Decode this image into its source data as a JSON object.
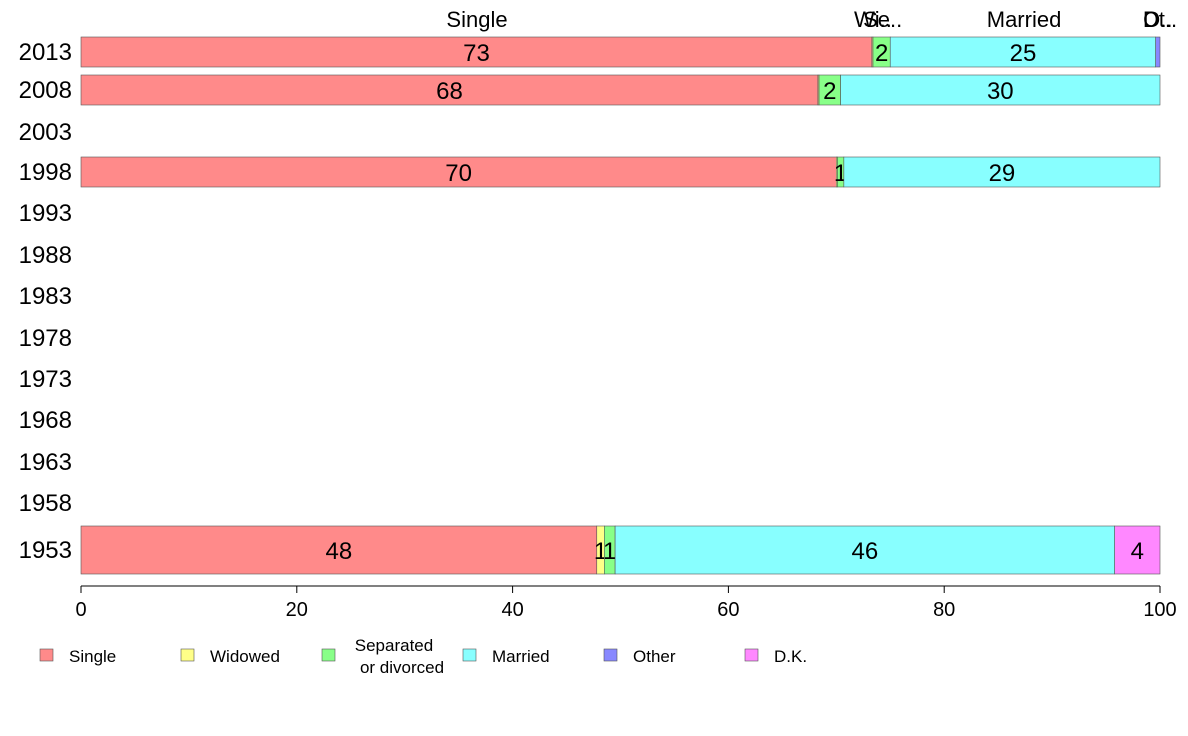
{
  "chart_data": {
    "type": "bar",
    "orientation": "horizontal",
    "stacked": true,
    "xlim": [
      0,
      100
    ],
    "x_ticks": [
      "0",
      "20",
      "40",
      "60",
      "80",
      "100"
    ],
    "categories": [
      "2013",
      "2008",
      "2003",
      "1998",
      "1993",
      "1988",
      "1983",
      "1978",
      "1973",
      "1968",
      "1963",
      "1958",
      "1953"
    ],
    "series": [
      {
        "name": "Single",
        "color": "#ff8a8a",
        "values": [
          73.3,
          68.3,
          null,
          70.0,
          null,
          null,
          null,
          null,
          null,
          null,
          null,
          null,
          47.8
        ],
        "labels": [
          "73",
          "68",
          "",
          "70",
          "",
          "",
          "",
          "",
          "",
          "",
          "",
          "",
          "48"
        ]
      },
      {
        "name": "Widowed",
        "color": "#ffff88",
        "values": [
          0.1,
          0.1,
          null,
          0.1,
          null,
          null,
          null,
          null,
          null,
          null,
          null,
          null,
          0.7
        ],
        "labels": [
          "",
          "",
          "",
          "",
          "",
          "",
          "",
          "",
          "",
          "",
          "",
          "",
          "1"
        ]
      },
      {
        "name": "Separated or divorced",
        "color": "#88ff88",
        "values": [
          1.6,
          2.0,
          null,
          0.6,
          null,
          null,
          null,
          null,
          null,
          null,
          null,
          null,
          1.0
        ],
        "labels": [
          "2",
          "2",
          "",
          "1",
          "",
          "",
          "",
          "",
          "",
          "",
          "",
          "",
          "1"
        ]
      },
      {
        "name": "Married",
        "color": "#88ffff",
        "values": [
          24.6,
          29.6,
          null,
          29.3,
          null,
          null,
          null,
          null,
          null,
          null,
          null,
          null,
          46.3
        ],
        "labels": [
          "25",
          "30",
          "",
          "29",
          "",
          "",
          "",
          "",
          "",
          "",
          "",
          "",
          "46"
        ]
      },
      {
        "name": "Other",
        "color": "#8888ff",
        "values": [
          0.4,
          0,
          null,
          0,
          null,
          null,
          null,
          null,
          null,
          null,
          null,
          null,
          0
        ],
        "labels": [
          "",
          "",
          "",
          "",
          "",
          "",
          "",
          "",
          "",
          "",
          "",
          "",
          ""
        ]
      },
      {
        "name": "D.K.",
        "color": "#ff88ff",
        "values": [
          0,
          0,
          null,
          0,
          null,
          null,
          null,
          null,
          null,
          null,
          null,
          null,
          4.2
        ],
        "labels": [
          "",
          "",
          "",
          "",
          "",
          "",
          "",
          "",
          "",
          "",
          "",
          "",
          "4"
        ]
      }
    ],
    "top_labels": [
      {
        "text": "Single",
        "x": 36.7
      },
      {
        "text": "Wi..",
        "x": 73.4
      },
      {
        "text": "Se..",
        "x": 74.3
      },
      {
        "text": "Married",
        "x": 87.4
      },
      {
        "text": "O..",
        "x": 99.8
      },
      {
        "text": "Dt..",
        "x": 100.0
      }
    ],
    "legend": {
      "placement": "bottom",
      "entries": [
        {
          "label": "Single",
          "color": "#ff8a8a"
        },
        {
          "label": "Widowed",
          "color": "#ffff88"
        },
        {
          "label_line1": "Separated",
          "label_line2": "or divorced",
          "color": "#88ff88"
        },
        {
          "label": "Married",
          "color": "#88ffff"
        },
        {
          "label": "Other",
          "color": "#8888ff"
        },
        {
          "label": "D.K.",
          "color": "#ff88ff"
        }
      ]
    }
  }
}
